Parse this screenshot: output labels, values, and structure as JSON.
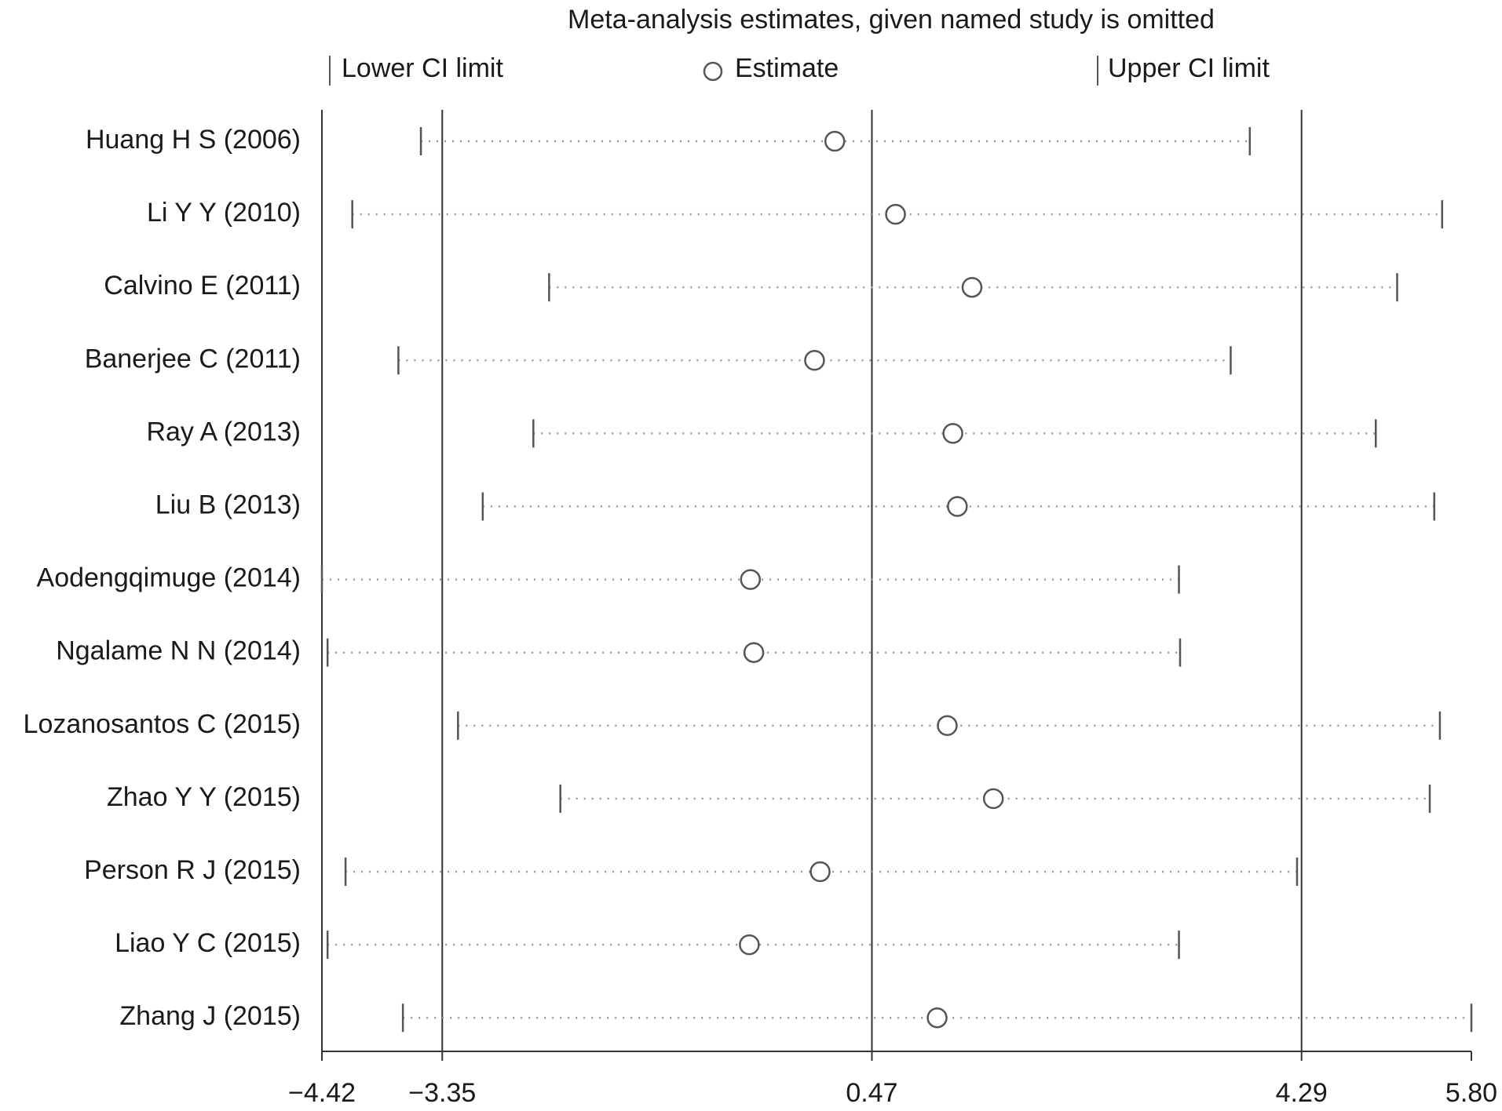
{
  "chart_data": {
    "type": "forest",
    "title": "Meta-analysis estimates, given named study is omitted",
    "categories": [
      "Huang H S (2006)",
      "Li Y Y (2010)",
      "Calvino E (2011)",
      "Banerjee C (2011)",
      "Ray A (2013)",
      "Liu B (2013)",
      "Aodengqimuge (2014)",
      "Ngalame N N (2014)",
      "Lozanosantos C (2015)",
      "Zhao Y Y (2015)",
      "Person R J (2015)",
      "Liao Y C (2015)",
      "Zhang J (2015)"
    ],
    "series": [
      {
        "name": "Lower CI limit",
        "color": "#555555",
        "values": [
          -3.54,
          -4.15,
          -2.4,
          -3.74,
          -2.54,
          -2.99,
          -4.42,
          -4.37,
          -3.21,
          -2.3,
          -4.21,
          -4.37,
          -3.7
        ]
      },
      {
        "name": "Estimate",
        "color": "#555555",
        "values": [
          0.14,
          0.68,
          1.36,
          -0.04,
          1.19,
          1.23,
          -0.61,
          -0.58,
          1.14,
          1.55,
          0.01,
          -0.62,
          1.05
        ]
      },
      {
        "name": "Upper CI limit",
        "color": "#555555",
        "values": [
          3.83,
          5.54,
          5.14,
          3.66,
          4.95,
          5.47,
          3.2,
          3.21,
          5.52,
          5.43,
          4.25,
          3.2,
          5.8
        ]
      }
    ],
    "xlim": [
      -4.42,
      5.8
    ],
    "xticks": [
      {
        "value": -4.42,
        "label": "−4.42"
      },
      {
        "value": -3.35,
        "label": "−3.35"
      },
      0.47,
      4.29,
      {
        "value": 5.8,
        "label": "5.80"
      }
    ],
    "grid": true
  }
}
